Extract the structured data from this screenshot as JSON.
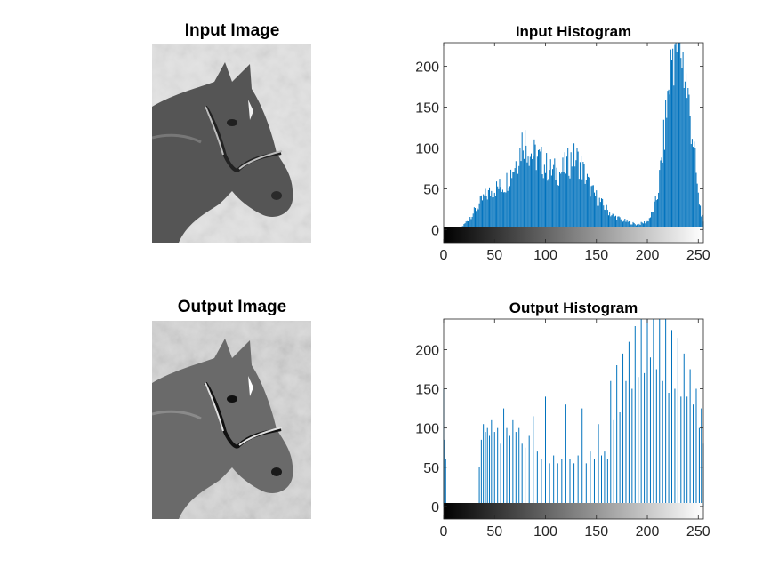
{
  "figure": {
    "input_image_title": "Input Image",
    "output_image_title": "Output Image"
  },
  "colors": {
    "bar": "#0072BD",
    "axis": "#262626",
    "background": "#ffffff"
  },
  "chart_data": [
    {
      "type": "bar",
      "title": "Input Histogram",
      "xlabel": "",
      "ylabel": "",
      "xlim": [
        0,
        255
      ],
      "ylim": [
        -16,
        229
      ],
      "xticks": [
        0,
        50,
        100,
        150,
        200,
        250
      ],
      "yticks": [
        0,
        50,
        100,
        150,
        200
      ],
      "colorbar": "grayscale 0-255 strip below baseline",
      "x_anchors": [
        0,
        15,
        20,
        30,
        40,
        50,
        60,
        68,
        75,
        78,
        85,
        95,
        105,
        115,
        125,
        130,
        135,
        145,
        155,
        165,
        175,
        185,
        190,
        200,
        205,
        210,
        215,
        220,
        225,
        228,
        232,
        236,
        240,
        245,
        250,
        255
      ],
      "y_anchors": [
        0,
        0,
        6,
        22,
        40,
        50,
        55,
        75,
        95,
        115,
        95,
        85,
        72,
        70,
        85,
        88,
        78,
        48,
        32,
        18,
        12,
        8,
        6,
        10,
        20,
        42,
        95,
        160,
        222,
        229,
        229,
        200,
        160,
        110,
        40,
        8
      ]
    },
    {
      "type": "bar",
      "title": "Output Histogram",
      "xlabel": "",
      "ylabel": "",
      "xlim": [
        0,
        255
      ],
      "ylim": [
        -16,
        239
      ],
      "xticks": [
        0,
        50,
        100,
        150,
        200,
        250
      ],
      "yticks": [
        0,
        50,
        100,
        150,
        200
      ],
      "colorbar": "grayscale 0-255 strip below baseline",
      "x": [
        0,
        1,
        2,
        35,
        37,
        39,
        41,
        43,
        45,
        47,
        50,
        53,
        56,
        59,
        62,
        65,
        68,
        71,
        74,
        77,
        80,
        84,
        88,
        92,
        96,
        100,
        104,
        108,
        112,
        116,
        120,
        124,
        128,
        132,
        136,
        140,
        144,
        148,
        152,
        155,
        158,
        161,
        164,
        167,
        170,
        173,
        176,
        179,
        182,
        185,
        188,
        191,
        194,
        197,
        200,
        203,
        206,
        209,
        212,
        215,
        218,
        221,
        224,
        227,
        230,
        233,
        236,
        239,
        242,
        245,
        248,
        251,
        253,
        255
      ],
      "values": [
        150,
        85,
        60,
        50,
        85,
        105,
        95,
        100,
        90,
        110,
        95,
        100,
        80,
        125,
        100,
        90,
        110,
        95,
        100,
        80,
        75,
        90,
        115,
        70,
        60,
        140,
        55,
        65,
        55,
        60,
        130,
        60,
        55,
        65,
        125,
        55,
        70,
        60,
        105,
        65,
        70,
        60,
        160,
        110,
        180,
        120,
        195,
        160,
        210,
        150,
        230,
        165,
        239,
        170,
        239,
        190,
        239,
        175,
        239,
        160,
        239,
        145,
        225,
        150,
        215,
        140,
        195,
        140,
        175,
        130,
        150,
        100,
        125,
        80
      ]
    }
  ]
}
